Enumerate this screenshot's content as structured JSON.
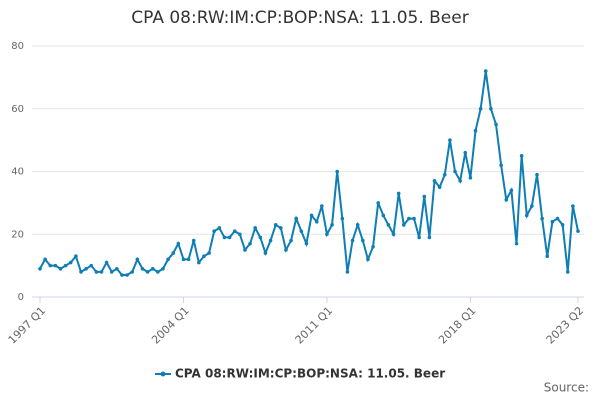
{
  "chart_data": {
    "type": "line",
    "title": "CPA 08:RW:IM:CP:BOP:NSA: 11.05. Beer",
    "source": "Source:",
    "categories": [
      "1997 Q1",
      null,
      null,
      null,
      null,
      null,
      null,
      null,
      null,
      null,
      null,
      null,
      null,
      null,
      null,
      null,
      null,
      null,
      null,
      null,
      null,
      null,
      null,
      null,
      null,
      null,
      null,
      null,
      "2004 Q1",
      null,
      null,
      null,
      null,
      null,
      null,
      null,
      null,
      null,
      null,
      null,
      null,
      null,
      null,
      null,
      null,
      null,
      null,
      null,
      null,
      null,
      null,
      null,
      null,
      null,
      null,
      null,
      "2011 Q1",
      null,
      null,
      null,
      null,
      null,
      null,
      null,
      null,
      null,
      null,
      null,
      null,
      null,
      null,
      null,
      null,
      null,
      null,
      null,
      null,
      null,
      null,
      null,
      null,
      null,
      null,
      null,
      "2018 Q1",
      null,
      null,
      null,
      null,
      null,
      null,
      null,
      null,
      null,
      null,
      null,
      null,
      null,
      null,
      null,
      null,
      null,
      null,
      null,
      null,
      "2023 Q2"
    ],
    "series": [
      {
        "name": "CPA 08:RW:IM:CP:BOP:NSA: 11.05. Beer",
        "color": "#0e7eb5",
        "values": [
          9,
          12,
          10,
          10,
          9,
          10,
          11,
          13,
          8,
          9,
          10,
          8,
          8,
          11,
          8,
          9,
          7,
          7,
          8,
          12,
          9,
          8,
          9,
          8,
          9,
          12,
          14,
          17,
          12,
          12,
          18,
          11,
          13,
          14,
          21,
          22,
          19,
          19,
          21,
          20,
          15,
          17,
          22,
          19,
          14,
          18,
          23,
          22,
          15,
          18,
          25,
          21,
          17,
          26,
          24,
          29,
          20,
          23,
          40,
          25,
          8,
          18,
          23,
          18,
          12,
          16,
          30,
          26,
          23,
          20,
          33,
          23,
          25,
          25,
          19,
          32,
          19,
          37,
          35,
          39,
          50,
          40,
          37,
          46,
          38,
          53,
          60,
          72,
          60,
          55,
          42,
          31,
          34,
          17,
          45,
          26,
          29,
          39,
          25,
          13,
          24,
          25,
          23,
          8,
          29,
          21
        ]
      }
    ],
    "ylim": [
      0,
      80
    ],
    "yticks": [
      0,
      20,
      40,
      60,
      80
    ],
    "grid": true
  }
}
